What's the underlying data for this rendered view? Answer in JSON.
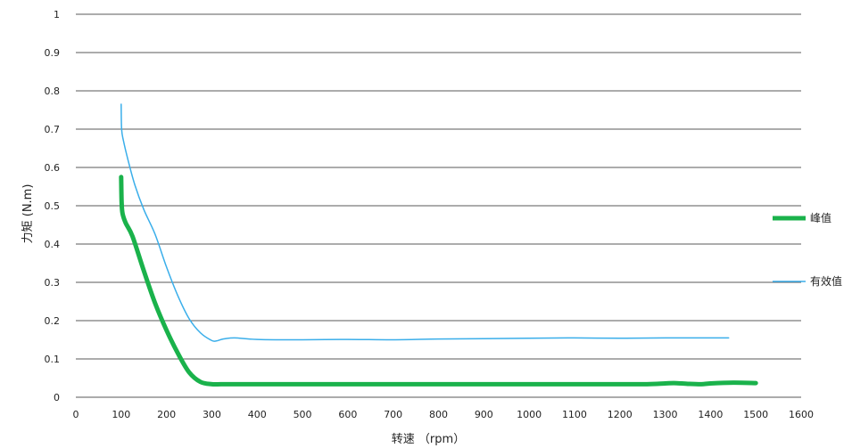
{
  "chart_data": {
    "type": "line",
    "title": "",
    "xlabel": "转速 （rpm）",
    "ylabel": "力矩 (N.m)",
    "xlim": [
      0,
      1600
    ],
    "ylim": [
      0,
      1
    ],
    "x_ticks": [
      0,
      100,
      200,
      300,
      400,
      500,
      600,
      700,
      800,
      900,
      1000,
      1100,
      1200,
      1300,
      1400,
      1500,
      1600
    ],
    "y_ticks": [
      0,
      0.1,
      0.2,
      0.3,
      0.4,
      0.5,
      0.6,
      0.7,
      0.8,
      0.9,
      1
    ],
    "y_tick_labels": [
      "0",
      "0.1",
      "0.2",
      "0.3",
      "0.4",
      "0.5",
      "0.6",
      "0.7",
      "0.8",
      "0.9",
      "1"
    ],
    "grid": "horizontal",
    "legend_position": "right",
    "series": [
      {
        "name": "峰值",
        "color": "#1ab24b",
        "x": [
          100,
          101,
          103,
          110,
          125,
          150,
          175,
          200,
          225,
          250,
          275,
          300,
          320,
          350,
          400,
          500,
          600,
          700,
          800,
          900,
          1000,
          1100,
          1200,
          1260,
          1300,
          1320,
          1350,
          1380,
          1400,
          1450,
          1500
        ],
        "y": [
          0.575,
          0.51,
          0.48,
          0.455,
          0.42,
          0.33,
          0.245,
          0.175,
          0.115,
          0.065,
          0.04,
          0.034,
          0.034,
          0.034,
          0.034,
          0.034,
          0.034,
          0.034,
          0.034,
          0.034,
          0.034,
          0.034,
          0.034,
          0.034,
          0.036,
          0.037,
          0.035,
          0.034,
          0.036,
          0.038,
          0.037
        ]
      },
      {
        "name": "有效值",
        "color": "#3aaeea",
        "x": [
          100,
          101,
          105,
          115,
          130,
          150,
          175,
          200,
          225,
          250,
          275,
          300,
          310,
          325,
          350,
          400,
          500,
          600,
          700,
          800,
          900,
          1000,
          1100,
          1200,
          1300,
          1400,
          1440
        ],
        "y": [
          0.765,
          0.7,
          0.67,
          0.62,
          0.555,
          0.49,
          0.425,
          0.34,
          0.265,
          0.205,
          0.168,
          0.148,
          0.147,
          0.152,
          0.155,
          0.151,
          0.15,
          0.151,
          0.15,
          0.152,
          0.153,
          0.154,
          0.155,
          0.154,
          0.155,
          0.155,
          0.155
        ]
      }
    ]
  }
}
